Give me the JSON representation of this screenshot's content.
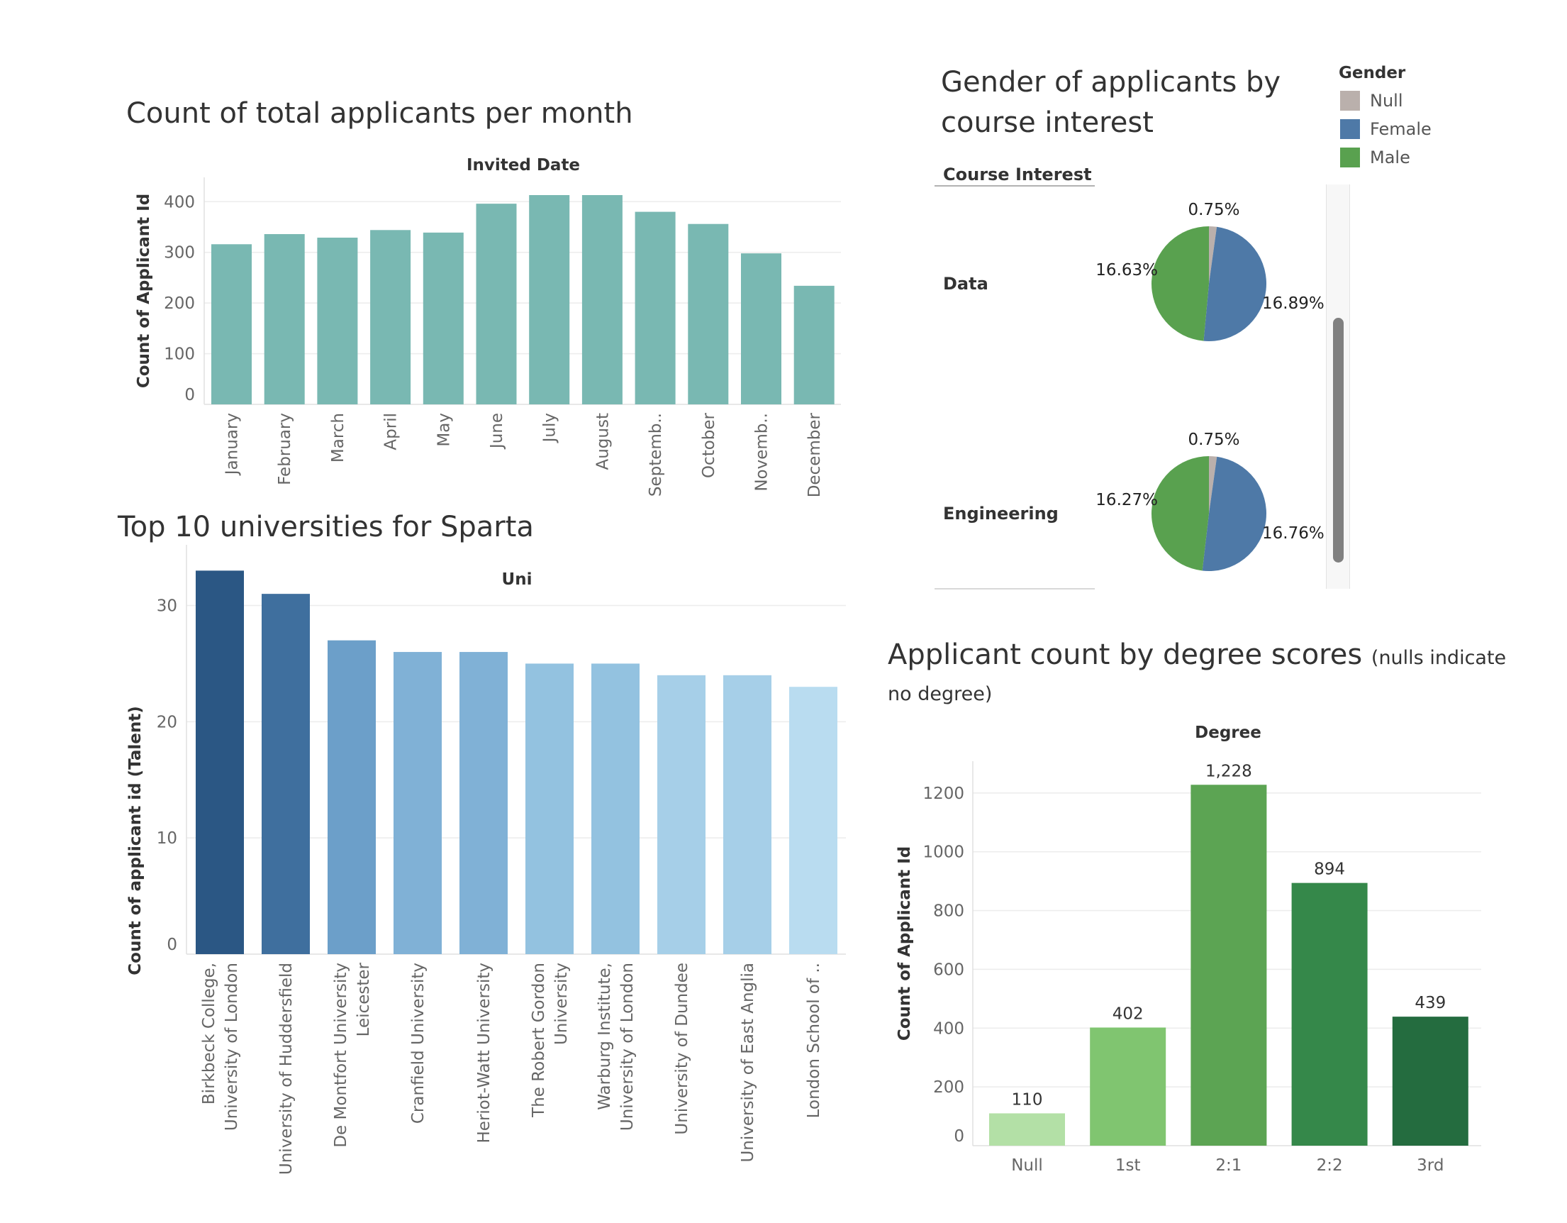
{
  "monthly": {
    "title": "Count of total applicants per month",
    "chart_data": {
      "type": "bar",
      "title": "Count of total applicants per month",
      "header": "Invited Date",
      "ylabel": "Count of Applicant Id",
      "categories": [
        "January",
        "February",
        "March",
        "April",
        "May",
        "June",
        "July",
        "August",
        "Septemb..",
        "October",
        "Novemb..",
        "December"
      ],
      "values": [
        316,
        336,
        329,
        344,
        339,
        396,
        413,
        413,
        380,
        356,
        298,
        234
      ],
      "ylim": [
        0,
        420
      ],
      "yticks": [
        0,
        100,
        200,
        300,
        400
      ],
      "color": "#79b8b2"
    }
  },
  "universities": {
    "title": "Top 10 universities for Sparta",
    "chart_data": {
      "type": "bar",
      "title": "Top 10 universities for Sparta",
      "header": "Uni",
      "ylabel": "Count of applicant id (Talent)",
      "categories": [
        [
          "Birkbeck College,",
          "University of London"
        ],
        [
          "University of Huddersfield"
        ],
        [
          "De Montfort University",
          "Leicester"
        ],
        [
          "Cranfield University"
        ],
        [
          "Heriot-Watt University"
        ],
        [
          "The Robert Gordon",
          "University"
        ],
        [
          "Warburg Institute,",
          "University of London"
        ],
        [
          "University of Dundee"
        ],
        [
          "University of East Anglia"
        ],
        [
          "London School of .."
        ]
      ],
      "values": [
        33,
        31,
        27,
        26,
        26,
        25,
        25,
        24,
        24,
        23
      ],
      "ylim": [
        0,
        34
      ],
      "yticks": [
        0,
        10,
        20,
        30
      ],
      "colors": [
        "#2b5784",
        "#3f6f9e",
        "#6c9fc9",
        "#80b1d6",
        "#80b1d6",
        "#93c2e0",
        "#93c2e0",
        "#a6cfe8",
        "#a6cfe8",
        "#b9dcf0"
      ]
    }
  },
  "gender": {
    "title_lines": [
      "Gender of applicants by",
      "course interest"
    ],
    "legend_title": "Gender",
    "legend": [
      {
        "label": "Null",
        "color": "#bab0ac"
      },
      {
        "label": "Female",
        "color": "#4e79a7"
      },
      {
        "label": "Male",
        "color": "#59a14f"
      }
    ],
    "row_header": "Course Interest",
    "chart_data": {
      "type": "pie",
      "rows": [
        {
          "label": "Data",
          "slices": [
            {
              "name": "Null",
              "value": 0.75,
              "label": "0.75%"
            },
            {
              "name": "Female",
              "value": 16.89,
              "label": "16.89%"
            },
            {
              "name": "Male",
              "value": 16.63,
              "label": "16.63%"
            }
          ]
        },
        {
          "label": "Engineering",
          "slices": [
            {
              "name": "Null",
              "value": 0.75,
              "label": "0.75%"
            },
            {
              "name": "Female",
              "value": 16.76,
              "label": "16.76%"
            },
            {
              "name": "Male",
              "value": 16.27,
              "label": "16.27%"
            }
          ]
        }
      ]
    }
  },
  "degree": {
    "title": "Applicant count by degree scores",
    "title_note_1": "(nulls indicate",
    "title_note_2": "no degree)",
    "chart_data": {
      "type": "bar",
      "title": "Applicant count by degree scores (nulls indicate no degree)",
      "header": "Degree",
      "ylabel": "Count of Applicant Id",
      "categories": [
        "Null",
        "1st",
        "2:1",
        "2:2",
        "3rd"
      ],
      "values": [
        110,
        402,
        1228,
        894,
        439
      ],
      "data_labels": [
        "110",
        "402",
        "1,228",
        "894",
        "439"
      ],
      "ylim": [
        0,
        1260
      ],
      "yticks": [
        0,
        200,
        400,
        600,
        800,
        1000,
        1200
      ],
      "colors": [
        "#b3e0a6",
        "#80c570",
        "#5ca453",
        "#35884a",
        "#246c3f"
      ]
    }
  }
}
